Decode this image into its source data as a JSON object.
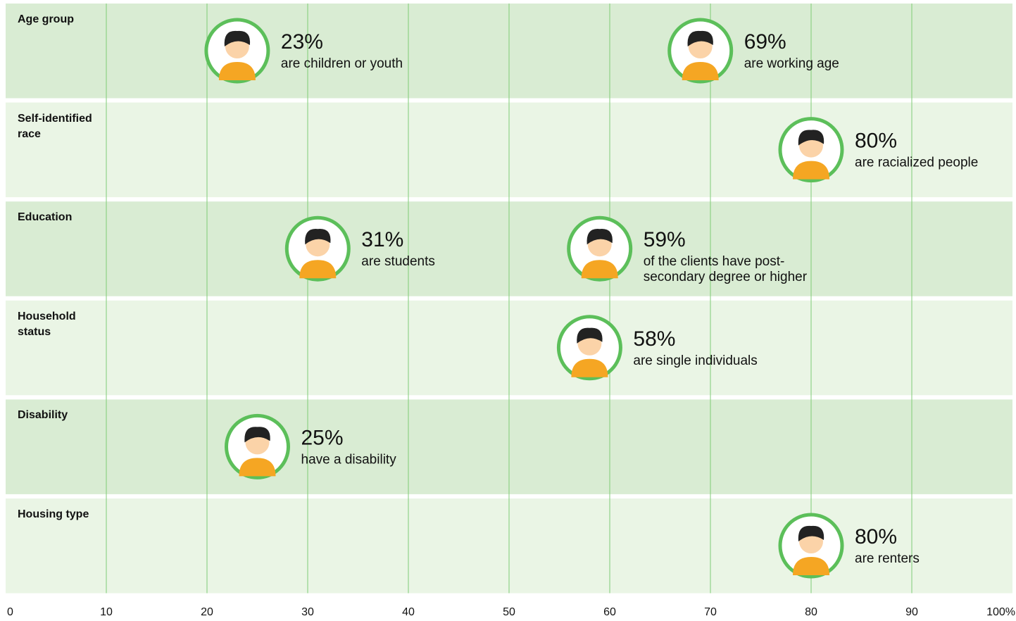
{
  "chart_data": {
    "type": "dot",
    "rows": [
      {
        "label": "Age group",
        "points": [
          {
            "value": 23,
            "value_label": "23%",
            "description": [
              "are children or youth"
            ]
          },
          {
            "value": 69,
            "value_label": "69%",
            "description": [
              "are working age"
            ]
          }
        ]
      },
      {
        "label": "Self-identified race",
        "points": [
          {
            "value": 80,
            "value_label": "80%",
            "description": [
              "are racialized people"
            ]
          }
        ]
      },
      {
        "label": "Education",
        "points": [
          {
            "value": 31,
            "value_label": "31%",
            "description": [
              "are students"
            ]
          },
          {
            "value": 59,
            "value_label": "59%",
            "description": [
              "of the clients have post-",
              "secondary degree or higher"
            ]
          }
        ]
      },
      {
        "label": "Household status",
        "points": [
          {
            "value": 58,
            "value_label": "58%",
            "description": [
              "are single individuals"
            ]
          }
        ]
      },
      {
        "label": "Disability",
        "points": [
          {
            "value": 25,
            "value_label": "25%",
            "description": [
              "have a disability"
            ]
          }
        ]
      },
      {
        "label": "Housing type",
        "points": [
          {
            "value": 80,
            "value_label": "80%",
            "description": [
              "are renters"
            ]
          }
        ]
      }
    ],
    "xlim": [
      0,
      100
    ],
    "xticks": [
      0,
      10,
      20,
      30,
      40,
      50,
      60,
      70,
      80,
      90,
      {
        "value": 100,
        "label": "100%"
      }
    ],
    "grid": true,
    "row_colors": [
      "#d9ecd3",
      "#eaf5e5"
    ],
    "grid_color": "#7fcb76",
    "marker_color": "#5cbf5a"
  }
}
